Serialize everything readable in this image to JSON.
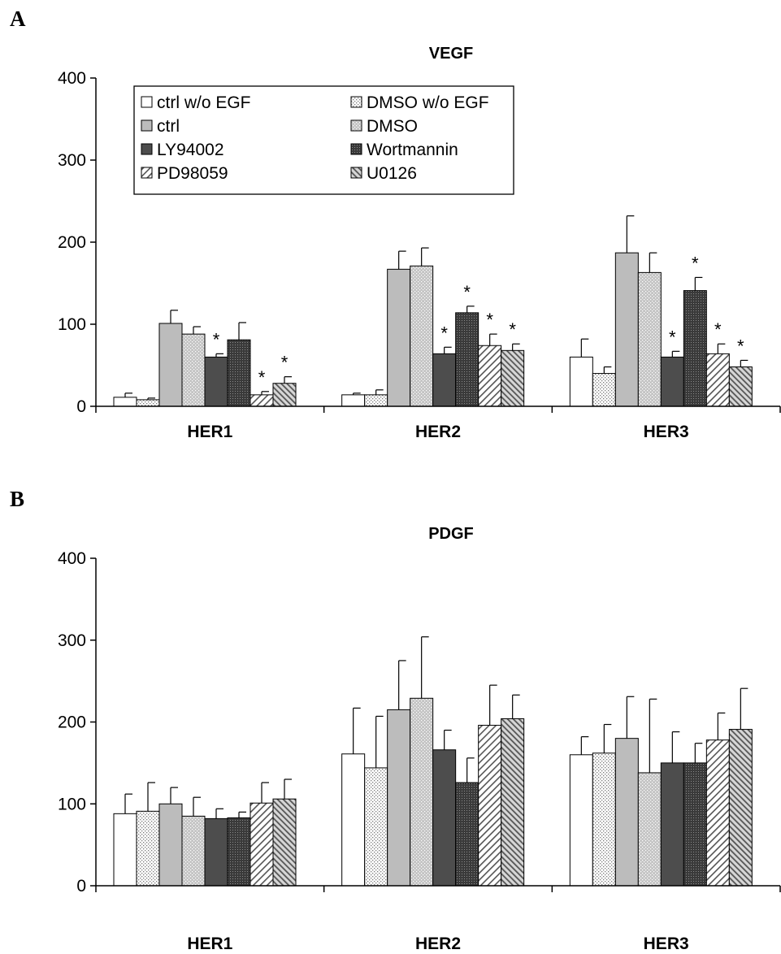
{
  "chart_data": [
    {
      "panel": "A",
      "type": "bar",
      "title": "VEGF",
      "xlabel": "",
      "ylabel": "",
      "ylim": [
        0,
        400
      ],
      "yticks": [
        0,
        100,
        200,
        300,
        400
      ],
      "categories": [
        "HER1",
        "HER2",
        "HER3"
      ],
      "legend_position": "top-left",
      "series": [
        {
          "name": "ctrl w/o EGF",
          "values": [
            11,
            14,
            60
          ],
          "errors": [
            5,
            2,
            22
          ],
          "stars": [
            false,
            false,
            false
          ],
          "pattern": "white"
        },
        {
          "name": "DMSO w/o EGF",
          "values": [
            8,
            14,
            40
          ],
          "errors": [
            2,
            6,
            8
          ],
          "stars": [
            false,
            false,
            false
          ],
          "pattern": "dots"
        },
        {
          "name": "ctrl",
          "values": [
            101,
            167,
            187
          ],
          "errors": [
            16,
            22,
            45
          ],
          "stars": [
            false,
            false,
            false
          ],
          "pattern": "gray"
        },
        {
          "name": "DMSO",
          "values": [
            88,
            171,
            163
          ],
          "errors": [
            9,
            22,
            24
          ],
          "stars": [
            false,
            false,
            false
          ],
          "pattern": "graydots"
        },
        {
          "name": "LY94002",
          "values": [
            60,
            64,
            60
          ],
          "errors": [
            4,
            8,
            7
          ],
          "stars": [
            true,
            true,
            true
          ],
          "pattern": "dark"
        },
        {
          "name": "Wortmannin",
          "values": [
            81,
            114,
            141
          ],
          "errors": [
            21,
            8,
            16
          ],
          "stars": [
            false,
            true,
            true
          ],
          "pattern": "darkdots"
        },
        {
          "name": "PD98059",
          "values": [
            14,
            74,
            64
          ],
          "errors": [
            4,
            14,
            12
          ],
          "stars": [
            true,
            true,
            true
          ],
          "pattern": "hatch"
        },
        {
          "name": "U0126",
          "values": [
            28,
            68,
            48
          ],
          "errors": [
            8,
            8,
            8
          ],
          "stars": [
            true,
            true,
            true
          ],
          "pattern": "backhatch"
        }
      ]
    },
    {
      "panel": "B",
      "type": "bar",
      "title": "PDGF",
      "xlabel": "",
      "ylabel": "",
      "ylim": [
        0,
        400
      ],
      "yticks": [
        0,
        100,
        200,
        300,
        400
      ],
      "categories": [
        "HER1",
        "HER2",
        "HER3"
      ],
      "series": [
        {
          "name": "ctrl w/o EGF",
          "values": [
            88,
            161,
            160
          ],
          "errors": [
            24,
            56,
            22
          ],
          "pattern": "white"
        },
        {
          "name": "DMSO w/o EGF",
          "values": [
            91,
            144,
            162
          ],
          "errors": [
            35,
            63,
            35
          ],
          "pattern": "dots"
        },
        {
          "name": "ctrl",
          "values": [
            100,
            215,
            180
          ],
          "errors": [
            20,
            60,
            51
          ],
          "pattern": "gray"
        },
        {
          "name": "DMSO",
          "values": [
            85,
            229,
            138
          ],
          "errors": [
            23,
            75,
            90
          ],
          "pattern": "graydots"
        },
        {
          "name": "LY94002",
          "values": [
            82,
            166,
            150
          ],
          "errors": [
            12,
            24,
            38
          ],
          "pattern": "dark"
        },
        {
          "name": "Wortmannin",
          "values": [
            83,
            126,
            150
          ],
          "errors": [
            7,
            30,
            24
          ],
          "pattern": "darkdots"
        },
        {
          "name": "PD98059",
          "values": [
            101,
            196,
            178
          ],
          "errors": [
            25,
            49,
            33
          ],
          "pattern": "hatch"
        },
        {
          "name": "U0126",
          "values": [
            106,
            204,
            191
          ],
          "errors": [
            24,
            29,
            50
          ],
          "pattern": "backhatch"
        }
      ]
    }
  ],
  "colors": {
    "axis": "#000000",
    "white": "#ffffff",
    "gray": "#bcbcbc",
    "dark": "#4d4d4d"
  }
}
